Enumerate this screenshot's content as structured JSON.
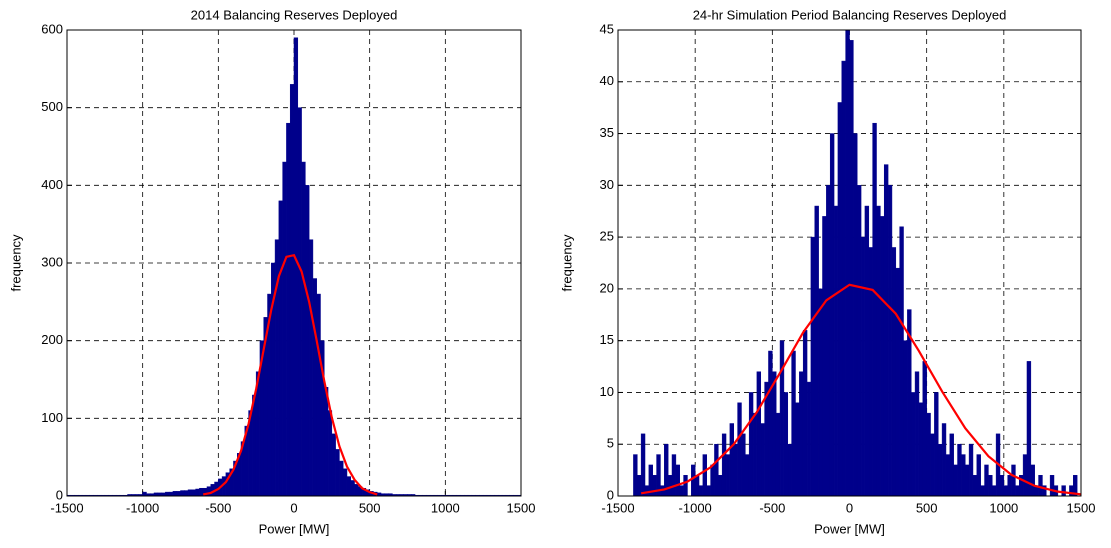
{
  "chart_data": [
    {
      "type": "histogram",
      "title": "2014 Balancing Reserves Deployed",
      "x_label": "Power [MW]",
      "y_label": "frequency",
      "bins": [
        -1500,
        -1475,
        -1450,
        -1425,
        -1400,
        -1375,
        -1350,
        -1325,
        -1300,
        -1275,
        -1250,
        -1225,
        -1200,
        -1175,
        -1150,
        -1125,
        -1100,
        -1075,
        -1050,
        -1025,
        -1000,
        -975,
        -950,
        -925,
        -900,
        -875,
        -850,
        -825,
        -800,
        -775,
        -750,
        -725,
        -700,
        -675,
        -650,
        -625,
        -600,
        -575,
        -550,
        -525,
        -500,
        -475,
        -450,
        -425,
        -400,
        -375,
        -350,
        -325,
        -300,
        -275,
        -250,
        -225,
        -200,
        -175,
        -150,
        -125,
        -100,
        -75,
        -50,
        -25,
        0,
        25,
        50,
        75,
        100,
        125,
        150,
        175,
        200,
        225,
        250,
        275,
        300,
        325,
        350,
        375,
        400,
        425,
        450,
        475,
        500,
        525,
        550,
        575,
        600,
        625,
        650,
        675,
        700,
        725,
        750,
        775,
        800,
        825,
        850,
        875,
        900,
        925,
        950,
        975,
        1000,
        1025,
        1050,
        1075,
        1100,
        1125,
        1150,
        1175,
        1200,
        1225,
        1250,
        1275,
        1300,
        1325,
        1350,
        1375,
        1400,
        1425,
        1450,
        1475,
        1500
      ],
      "values": [
        1,
        1,
        1,
        1,
        1,
        1,
        1,
        1,
        1,
        1,
        1,
        1,
        1,
        1,
        1,
        1,
        2,
        2,
        2,
        2,
        5,
        3,
        3,
        4,
        4,
        4,
        5,
        5,
        6,
        6,
        7,
        7,
        8,
        8,
        9,
        10,
        10,
        12,
        15,
        18,
        22,
        25,
        30,
        35,
        45,
        55,
        70,
        90,
        110,
        130,
        160,
        200,
        230,
        260,
        300,
        330,
        380,
        430,
        480,
        530,
        590,
        500,
        430,
        400,
        330,
        280,
        260,
        200,
        140,
        110,
        80,
        60,
        45,
        35,
        25,
        20,
        15,
        12,
        10,
        8,
        6,
        5,
        4,
        3,
        3,
        3,
        2,
        2,
        2,
        2,
        2,
        2,
        1,
        1,
        1,
        1,
        1,
        1,
        1,
        1,
        1,
        1,
        1,
        1,
        1,
        1,
        1,
        1,
        1,
        1,
        1,
        1,
        1,
        1,
        1,
        1,
        1,
        1,
        1,
        1
      ],
      "color": "#00008b",
      "curve": {
        "x": [
          -600,
          -550,
          -500,
          -450,
          -400,
          -350,
          -300,
          -250,
          -200,
          -150,
          -100,
          -50,
          0,
          50,
          100,
          150,
          200,
          250,
          300,
          350,
          400,
          450,
          500,
          550
        ],
        "values": [
          2,
          4,
          9,
          18,
          34,
          58,
          93,
          138,
          189,
          240,
          283,
          308,
          310,
          289,
          250,
          200,
          148,
          101,
          64,
          38,
          21,
          10,
          5,
          2
        ],
        "color": "#ff0000"
      },
      "xlim": [
        -1500,
        1500
      ],
      "xticks": [
        -1500,
        -1000,
        -500,
        0,
        500,
        1000,
        1500
      ],
      "ylim": [
        0,
        600
      ],
      "yticks": [
        0,
        100,
        200,
        300,
        400,
        500,
        600
      ],
      "grid": true
    },
    {
      "type": "histogram",
      "title": "24-hr Simulation Period Balancing Reserves Deployed",
      "x_label": "Power [MW]",
      "y_label": "frequency",
      "bins": [
        -1500,
        -1475,
        -1450,
        -1425,
        -1400,
        -1375,
        -1350,
        -1325,
        -1300,
        -1275,
        -1250,
        -1225,
        -1200,
        -1175,
        -1150,
        -1125,
        -1100,
        -1075,
        -1050,
        -1025,
        -1000,
        -975,
        -950,
        -925,
        -900,
        -875,
        -850,
        -825,
        -800,
        -775,
        -750,
        -725,
        -700,
        -675,
        -650,
        -625,
        -600,
        -575,
        -550,
        -525,
        -500,
        -475,
        -450,
        -425,
        -400,
        -375,
        -350,
        -325,
        -300,
        -275,
        -250,
        -225,
        -200,
        -175,
        -150,
        -125,
        -100,
        -75,
        -50,
        -25,
        0,
        25,
        50,
        75,
        100,
        125,
        150,
        175,
        200,
        225,
        250,
        275,
        300,
        325,
        350,
        375,
        400,
        425,
        450,
        475,
        500,
        525,
        550,
        575,
        600,
        625,
        650,
        675,
        700,
        725,
        750,
        775,
        800,
        825,
        850,
        875,
        900,
        925,
        950,
        975,
        1000,
        1025,
        1050,
        1075,
        1100,
        1125,
        1150,
        1175,
        1200,
        1225,
        1250,
        1275,
        1300,
        1325,
        1350,
        1375,
        1400,
        1425,
        1450,
        1475,
        1500
      ],
      "values": [
        0,
        0,
        0,
        0,
        4,
        2,
        6,
        1,
        3,
        2,
        4,
        1,
        5,
        2,
        4,
        3,
        1,
        2,
        0,
        3,
        2,
        1,
        4,
        1,
        3,
        5,
        2,
        6,
        4,
        7,
        5,
        9,
        6,
        4,
        10,
        8,
        12,
        7,
        11,
        14,
        12,
        8,
        15,
        10,
        5,
        14,
        9,
        12,
        16,
        11,
        25,
        28,
        20,
        27,
        30,
        35,
        28,
        38,
        42,
        45,
        44,
        35,
        30,
        25,
        28,
        24,
        36,
        28,
        27,
        32,
        30,
        24,
        22,
        26,
        15,
        18,
        10,
        12,
        9,
        13,
        8,
        6,
        10,
        5,
        7,
        4,
        6,
        3,
        5,
        4,
        3,
        5,
        2,
        4,
        1,
        3,
        2,
        1,
        6,
        2,
        1,
        2,
        3,
        1,
        2,
        4,
        13,
        3,
        1,
        2,
        1,
        0,
        2,
        1,
        0,
        1,
        0,
        1,
        2,
        0
      ],
      "color": "#00008b",
      "curve": {
        "x": [
          -1350,
          -1200,
          -1050,
          -900,
          -750,
          -600,
          -450,
          -300,
          -150,
          0,
          150,
          300,
          450,
          600,
          750,
          900,
          1050,
          1200,
          1350,
          1500
        ],
        "values": [
          0.26,
          0.63,
          1.39,
          2.77,
          4.99,
          8.11,
          11.9,
          15.8,
          18.9,
          20.4,
          19.9,
          17.6,
          14.0,
          10.1,
          6.55,
          3.84,
          2.04,
          0.98,
          0.42,
          0.16
        ],
        "color": "#ff0000"
      },
      "xlim": [
        -1500,
        1500
      ],
      "xticks": [
        -1500,
        -1000,
        -500,
        0,
        500,
        1000,
        1500
      ],
      "ylim": [
        0,
        45
      ],
      "yticks": [
        0,
        5,
        10,
        15,
        20,
        25,
        30,
        35,
        40,
        45
      ],
      "grid": true
    }
  ]
}
